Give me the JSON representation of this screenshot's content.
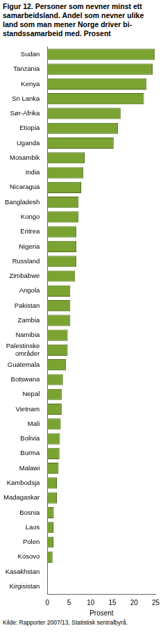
{
  "chart_data": {
    "type": "bar",
    "orientation": "horizontal",
    "title": "Figur 12. Personer som nevner minst ett samarbeidsland. Andel som nevner ulike land som man mener Norge driver bi-standssamarbeid med. Prosent",
    "source": "Kilde: Rapporter 2007/13, Statistisk sentralbyrå.",
    "x_label": "Prosent",
    "categories": [
      "Sudan",
      "Tanzania",
      "Kenya",
      "Sri Lanka",
      "Sør-Afrika",
      "Etiopia",
      "Uganda",
      "Mosambik",
      "India",
      "Nicaragua",
      "Bangladesh",
      "Kongo",
      "Eritrea",
      "Nigeria",
      "Russland",
      "Zimbabwe",
      "Angola",
      "Pakistan",
      "Zambia",
      "Namibia",
      "Palestinske områder",
      "Guatemala",
      "Botswana",
      "Nepal",
      "Vietnam",
      "Mali",
      "Bolivia",
      "Burma",
      "Malawi",
      "Kambodsja",
      "Madagaskar",
      "Bosnia",
      "Laos",
      "Polen",
      "Kosovo",
      "Kasakhstan",
      "Kirgisistan"
    ],
    "values": [
      24.8,
      24.3,
      22.9,
      22.3,
      16.9,
      16.3,
      15.3,
      8.6,
      8.3,
      7.8,
      7.2,
      7.2,
      6.7,
      6.7,
      6.7,
      6.4,
      5.3,
      5.3,
      5.3,
      4.7,
      4.7,
      4.3,
      3.6,
      3.3,
      3.3,
      3.1,
      2.9,
      2.8,
      2.6,
      2.2,
      2.2,
      1.5,
      1.4,
      1.4,
      1.2,
      0.1,
      0.1
    ],
    "color": "#7aa332",
    "xlim": [
      0,
      25
    ],
    "xticks": [
      0,
      5,
      10,
      15,
      20,
      25
    ],
    "grid": false
  }
}
